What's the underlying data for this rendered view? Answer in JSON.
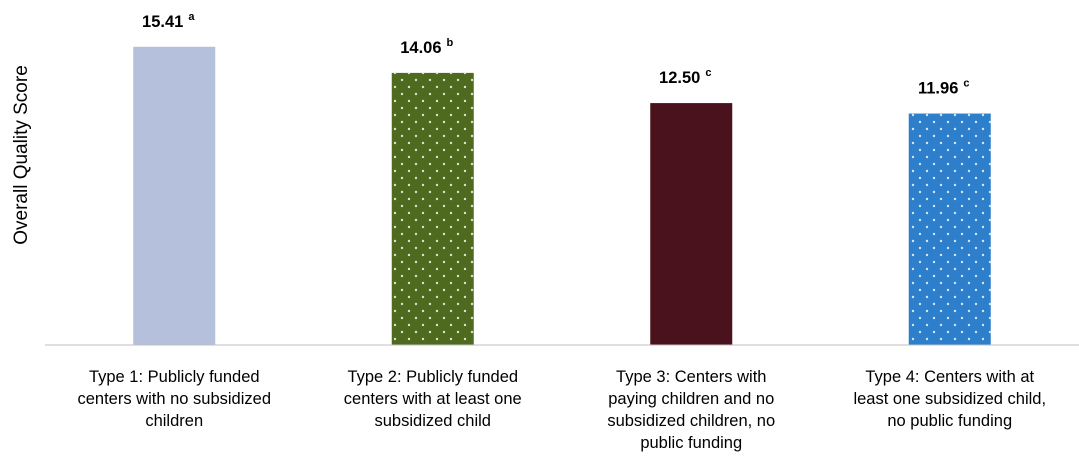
{
  "chart_data": {
    "type": "bar",
    "y_label": "Overall Quality Score",
    "categories": [
      "Type 1: Publicly funded centers with no subsidized children",
      "Type 2: Publicly funded centers with at least one subsidized child",
      "Type 3: Centers with paying children and no subsidized children, no public funding",
      "Type 4: Centers with at least one subsidized child, no public funding"
    ],
    "values": [
      15.41,
      14.06,
      12.5,
      11.96
    ],
    "value_labels": [
      "15.41",
      "14.06",
      "12.50",
      "11.96"
    ],
    "significance": [
      "a",
      "b",
      "c",
      "c"
    ],
    "colors": [
      "#b4c0dc",
      "#4e6a1f",
      "#4a121c",
      "#2d7fcb"
    ],
    "patterns": [
      "solid",
      "dots",
      "solid",
      "dots"
    ],
    "ylim": [
      0,
      17
    ]
  }
}
